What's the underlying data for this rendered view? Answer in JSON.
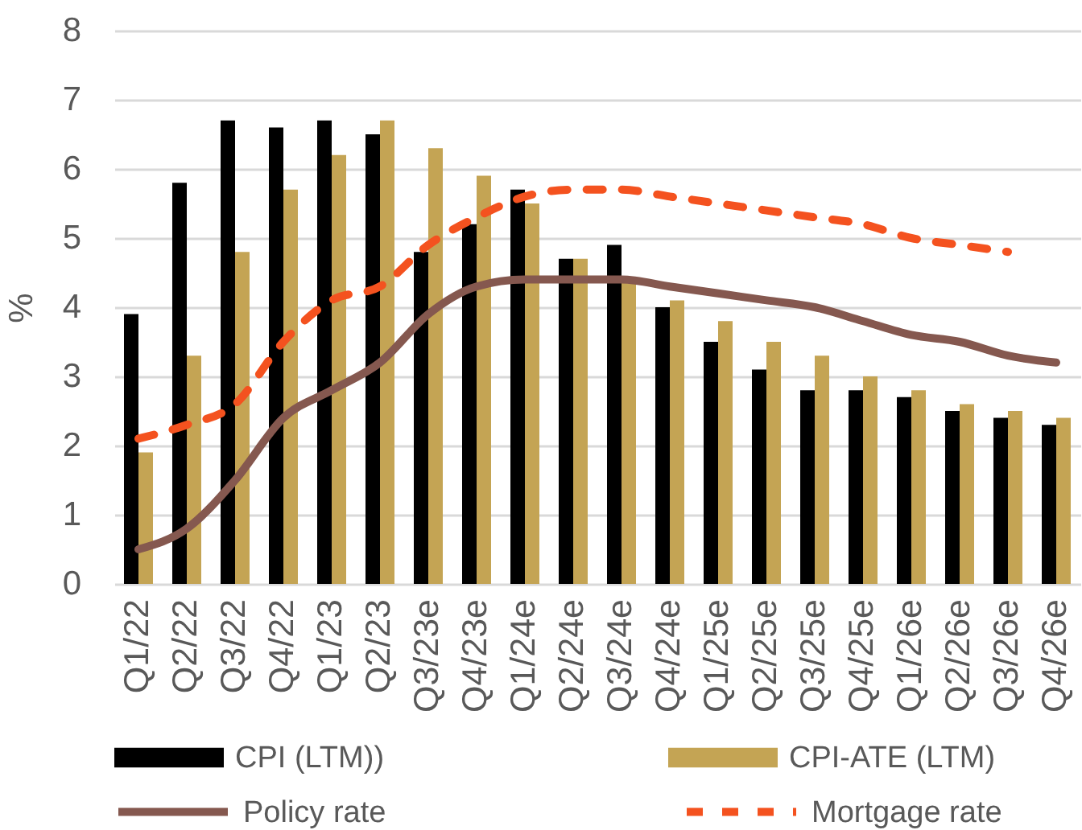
{
  "chart_data": {
    "type": "bar",
    "ylabel": "%",
    "categories": [
      "Q1/22",
      "Q2/22",
      "Q3/22",
      "Q4/22",
      "Q1/23",
      "Q2/23",
      "Q3/23e",
      "Q4/23e",
      "Q1/24e",
      "Q2/24e",
      "Q3/24e",
      "Q4/24e",
      "Q1/25e",
      "Q2/25e",
      "Q3/25e",
      "Q4/25e",
      "Q1/26e",
      "Q2/26e",
      "Q3/26e",
      "Q4/26e"
    ],
    "series": [
      {
        "name": "CPI (LTM))",
        "color": "#000000",
        "values": [
          3.9,
          5.8,
          6.7,
          6.6,
          6.7,
          6.5,
          4.8,
          5.2,
          5.7,
          4.7,
          4.9,
          4.0,
          3.5,
          3.1,
          2.8,
          2.8,
          2.7,
          2.5,
          2.4,
          2.3
        ]
      },
      {
        "name": "CPI-ATE (LTM)",
        "color": "#c4a454",
        "values": [
          1.9,
          3.3,
          4.8,
          5.7,
          6.2,
          6.7,
          6.3,
          5.9,
          5.5,
          4.7,
          4.4,
          4.1,
          3.8,
          3.5,
          3.3,
          3.0,
          2.8,
          2.6,
          2.5,
          2.4
        ]
      },
      {
        "name": "Policy rate",
        "type": "line",
        "color": "#85584f",
        "line_style": "solid",
        "values": [
          0.5,
          0.8,
          1.5,
          2.4,
          2.8,
          3.2,
          3.9,
          4.3,
          4.4,
          4.4,
          4.4,
          4.3,
          4.2,
          4.1,
          4.0,
          3.8,
          3.6,
          3.5,
          3.3,
          3.2
        ]
      },
      {
        "name": "Mortgage rate",
        "type": "line",
        "color": "#f4521f",
        "line_style": "dashed",
        "values": [
          2.1,
          2.3,
          2.6,
          3.5,
          4.1,
          4.3,
          4.9,
          5.3,
          5.6,
          5.7,
          5.7,
          5.6,
          5.5,
          5.4,
          5.3,
          5.2,
          5.0,
          4.9,
          4.8,
          null
        ]
      }
    ],
    "ylim": [
      0,
      8
    ],
    "yticks": [
      0,
      1,
      2,
      3,
      4,
      5,
      6,
      7,
      8
    ],
    "grid": "y",
    "legend": "bottom"
  }
}
